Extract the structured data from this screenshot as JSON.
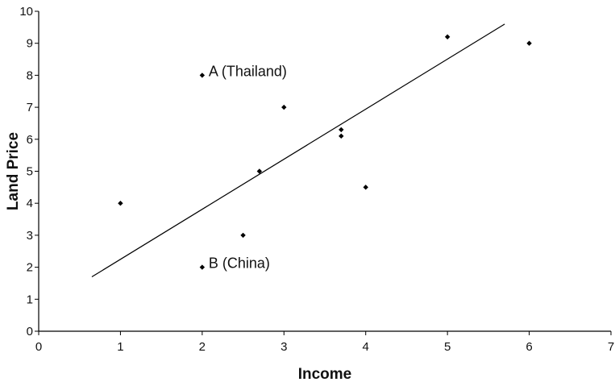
{
  "chart_data": {
    "type": "scatter",
    "title": "",
    "xlabel": "Income",
    "ylabel": "Land Price",
    "xlim": [
      0,
      7
    ],
    "ylim": [
      0,
      10
    ],
    "xticks": [
      "0",
      "1",
      "2",
      "3",
      "4",
      "5",
      "6",
      "7"
    ],
    "yticks": [
      "0",
      "1",
      "2",
      "3",
      "4",
      "5",
      "6",
      "7",
      "8",
      "9",
      "10"
    ],
    "grid": false,
    "points": [
      {
        "x": 1.0,
        "y": 4.0
      },
      {
        "x": 2.0,
        "y": 8.0
      },
      {
        "x": 2.0,
        "y": 2.0
      },
      {
        "x": 2.5,
        "y": 3.0
      },
      {
        "x": 2.7,
        "y": 5.0
      },
      {
        "x": 3.0,
        "y": 7.0
      },
      {
        "x": 3.7,
        "y": 6.3
      },
      {
        "x": 3.7,
        "y": 6.1
      },
      {
        "x": 4.0,
        "y": 4.5
      },
      {
        "x": 5.0,
        "y": 9.2
      },
      {
        "x": 6.0,
        "y": 9.0
      }
    ],
    "trendline": {
      "x1": 0.65,
      "y1": 1.7,
      "x2": 5.7,
      "y2": 9.6
    },
    "annotations": [
      {
        "text": "A (Thailand)",
        "x": 2.0,
        "y": 8.0
      },
      {
        "text": "B (China)",
        "x": 2.0,
        "y": 2.0
      }
    ]
  }
}
